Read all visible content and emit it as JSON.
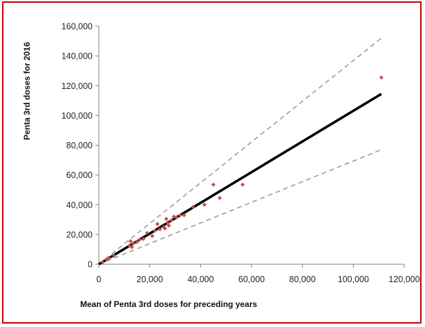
{
  "chart_data": {
    "type": "scatter",
    "title": "",
    "xlabel": "Mean of Penta 3rd doses for preceding years",
    "ylabel": "Penta 3rd doses for 2016",
    "xlim": [
      0,
      120000
    ],
    "ylim": [
      0,
      160000
    ],
    "x_ticks": [
      "0",
      "20,000",
      "40,000",
      "60,000",
      "80,000",
      "100,000",
      "120,000"
    ],
    "y_ticks": [
      "0",
      "20,000",
      "40,000",
      "60,000",
      "80,000",
      "100,000",
      "120,000",
      "140,000",
      "160,000"
    ],
    "grid": false,
    "legend": "none",
    "points": [
      {
        "x": 1500,
        "y": 1300
      },
      {
        "x": 3000,
        "y": 3200
      },
      {
        "x": 4000,
        "y": 4200
      },
      {
        "x": 6000,
        "y": 5800
      },
      {
        "x": 12000,
        "y": 12500
      },
      {
        "x": 12500,
        "y": 15500
      },
      {
        "x": 13000,
        "y": 11500
      },
      {
        "x": 13500,
        "y": 14000
      },
      {
        "x": 15000,
        "y": 15000
      },
      {
        "x": 16000,
        "y": 16500
      },
      {
        "x": 17500,
        "y": 17000
      },
      {
        "x": 19000,
        "y": 21000
      },
      {
        "x": 21000,
        "y": 19000
      },
      {
        "x": 22000,
        "y": 22500
      },
      {
        "x": 23000,
        "y": 27000
      },
      {
        "x": 24000,
        "y": 23500
      },
      {
        "x": 25500,
        "y": 25000
      },
      {
        "x": 26000,
        "y": 24000
      },
      {
        "x": 26500,
        "y": 30500
      },
      {
        "x": 27000,
        "y": 28000
      },
      {
        "x": 27500,
        "y": 26000
      },
      {
        "x": 28500,
        "y": 29500
      },
      {
        "x": 29500,
        "y": 32000
      },
      {
        "x": 30500,
        "y": 31500
      },
      {
        "x": 32000,
        "y": 33000
      },
      {
        "x": 33500,
        "y": 33000
      },
      {
        "x": 37000,
        "y": 38500
      },
      {
        "x": 41500,
        "y": 40000
      },
      {
        "x": 45000,
        "y": 53500
      },
      {
        "x": 47500,
        "y": 44500
      },
      {
        "x": 56500,
        "y": 53500
      },
      {
        "x": 111000,
        "y": 125500
      }
    ],
    "point_color": "#c0504d",
    "fit_line": {
      "x": [
        0,
        111000
      ],
      "y": [
        0,
        114500
      ],
      "color": "#000000",
      "style": "solid"
    },
    "upper_bound": {
      "x": [
        0,
        111000
      ],
      "y": [
        0,
        152000
      ],
      "color": "#a6a6a6",
      "style": "dashed"
    },
    "lower_bound": {
      "x": [
        0,
        111000
      ],
      "y": [
        0,
        77000
      ],
      "color": "#a6a6a6",
      "style": "dashed"
    },
    "frame_color": "#c00000"
  }
}
